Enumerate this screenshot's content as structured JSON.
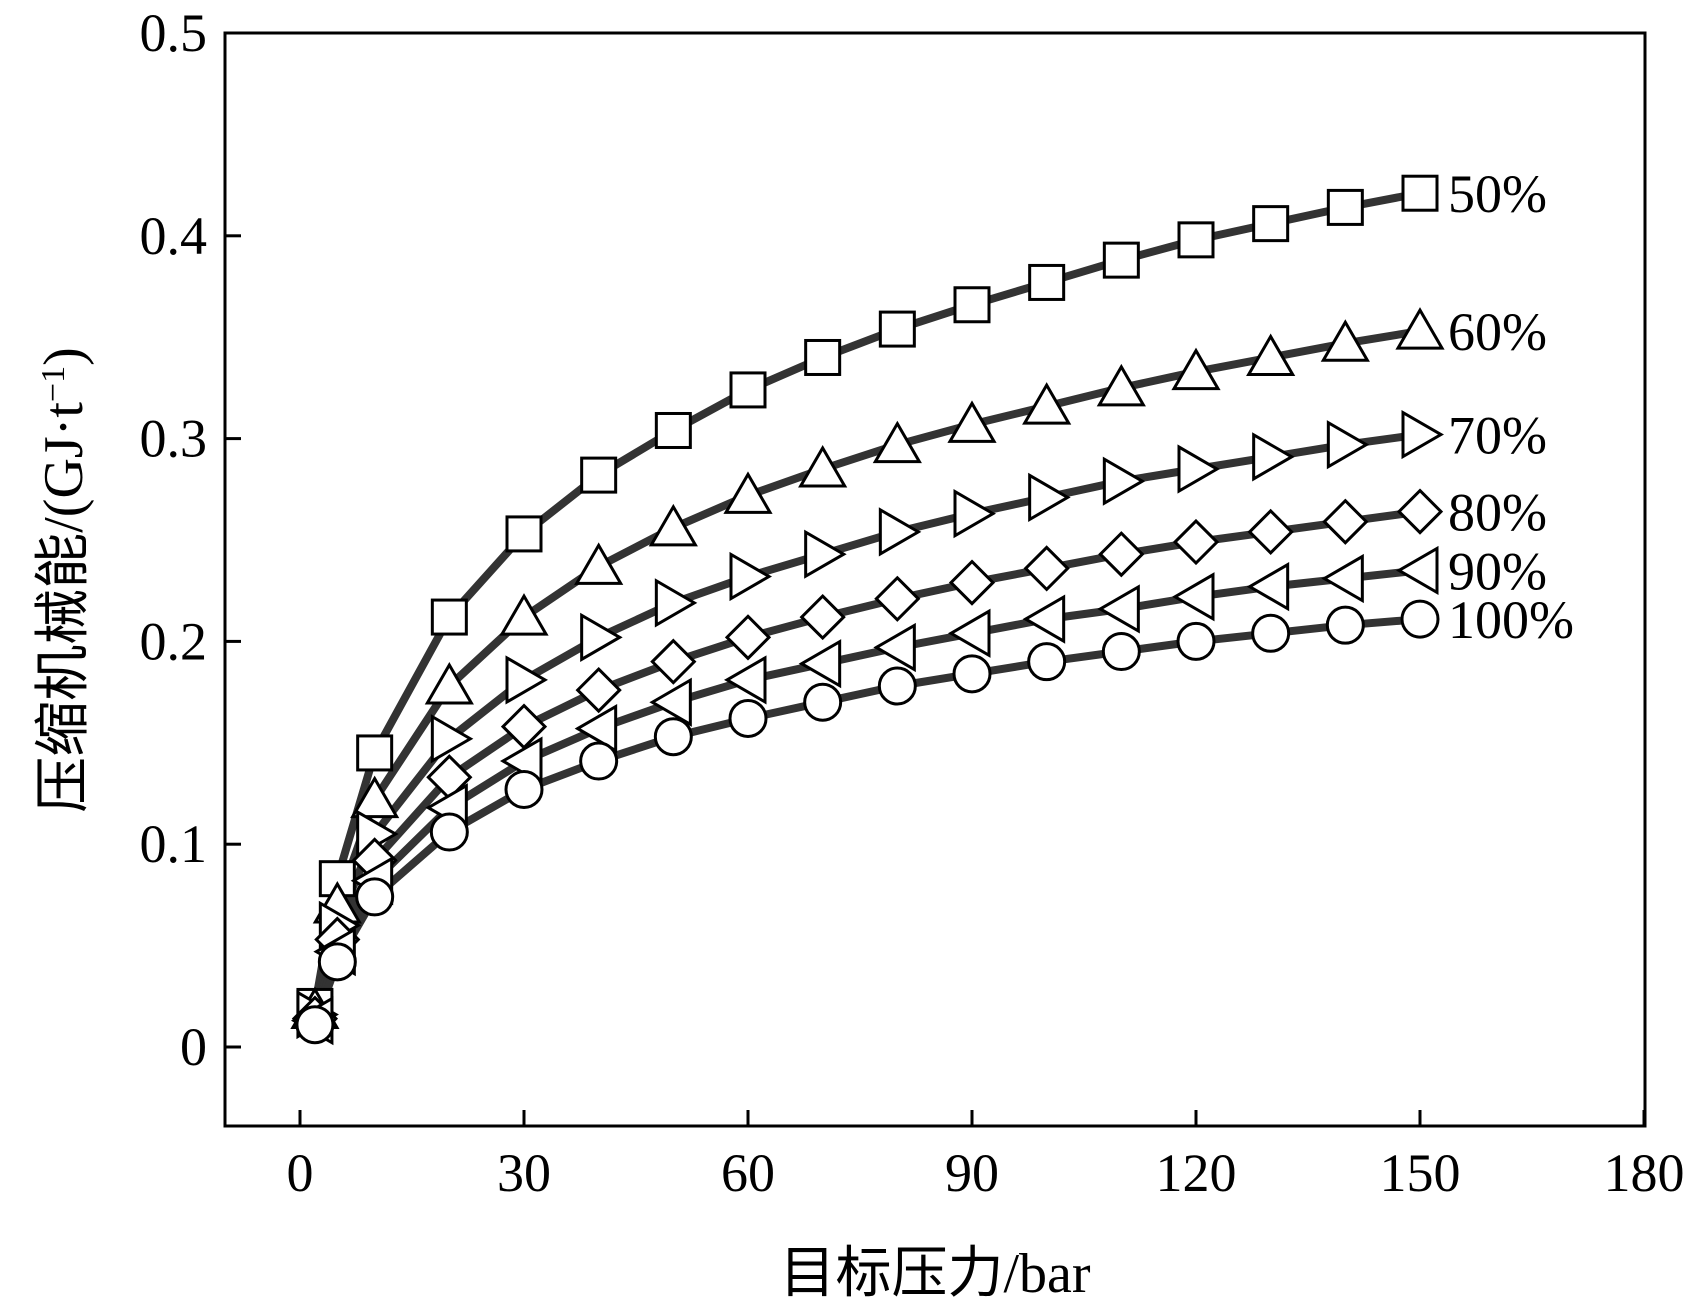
{
  "chart_data": {
    "type": "line",
    "title": "",
    "xlabel": "目标压力/bar",
    "ylabel": "压缩机械能/(GJ·t",
    "ylabel_superscript": "−1",
    "ylabel_suffix": ")",
    "xlim": [
      -10,
      180
    ],
    "ylim": [
      -0.038,
      0.5
    ],
    "xticks": [
      0,
      30,
      60,
      90,
      120,
      150,
      180
    ],
    "xtick_labels": [
      "0",
      "30",
      "60",
      "90",
      "120",
      "150",
      "180"
    ],
    "yticks": [
      0,
      0.1,
      0.2,
      0.3,
      0.4,
      0.5
    ],
    "ytick_labels": [
      "0",
      "0.1",
      "0.2",
      "0.3",
      "0.4",
      "0.5"
    ],
    "grid": false,
    "legend": "inline labels at right end of each series",
    "x": [
      2,
      5,
      10,
      20,
      30,
      40,
      50,
      60,
      70,
      80,
      90,
      100,
      110,
      120,
      130,
      140,
      150
    ],
    "series": [
      {
        "name": "50%",
        "marker": "square",
        "values": [
          0.02,
          0.083,
          0.145,
          0.212,
          0.253,
          0.282,
          0.304,
          0.324,
          0.34,
          0.354,
          0.366,
          0.377,
          0.388,
          0.398,
          0.406,
          0.414,
          0.421
        ]
      },
      {
        "name": "60%",
        "marker": "triangle-up",
        "values": [
          0.018,
          0.07,
          0.122,
          0.178,
          0.212,
          0.237,
          0.256,
          0.272,
          0.285,
          0.297,
          0.307,
          0.316,
          0.325,
          0.333,
          0.34,
          0.347,
          0.353
        ]
      },
      {
        "name": "70%",
        "marker": "triangle-right",
        "values": [
          0.016,
          0.06,
          0.105,
          0.152,
          0.181,
          0.202,
          0.219,
          0.232,
          0.243,
          0.254,
          0.263,
          0.271,
          0.279,
          0.285,
          0.291,
          0.297,
          0.302
        ]
      },
      {
        "name": "80%",
        "marker": "diamond",
        "values": [
          0.014,
          0.053,
          0.092,
          0.133,
          0.158,
          0.176,
          0.19,
          0.202,
          0.212,
          0.221,
          0.229,
          0.236,
          0.243,
          0.249,
          0.254,
          0.259,
          0.264
        ]
      },
      {
        "name": "90%",
        "marker": "triangle-left",
        "values": [
          0.013,
          0.047,
          0.082,
          0.118,
          0.141,
          0.157,
          0.17,
          0.181,
          0.189,
          0.197,
          0.204,
          0.211,
          0.216,
          0.222,
          0.227,
          0.231,
          0.235
        ]
      },
      {
        "name": "100%",
        "marker": "circle",
        "values": [
          0.011,
          0.042,
          0.074,
          0.106,
          0.127,
          0.141,
          0.153,
          0.162,
          0.17,
          0.178,
          0.184,
          0.19,
          0.195,
          0.2,
          0.204,
          0.208,
          0.211
        ]
      }
    ]
  }
}
